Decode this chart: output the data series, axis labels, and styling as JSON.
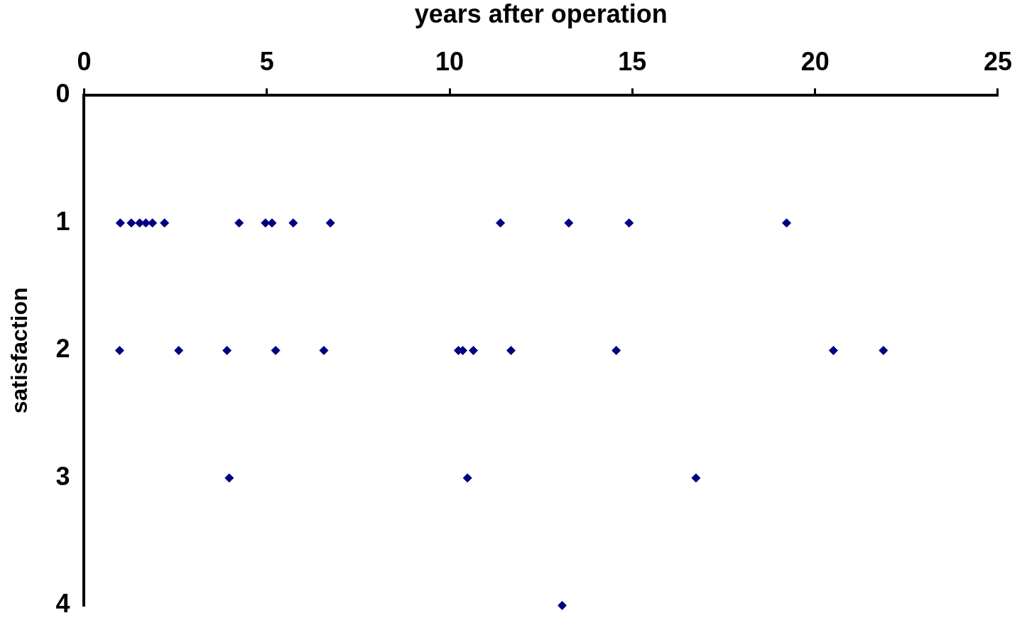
{
  "chart_data": {
    "type": "scatter",
    "xlabel": "years after operation",
    "ylabel": "satisfaction",
    "series": [
      {
        "color": "#000080",
        "x": [
          0.99,
          1.29,
          1.52,
          1.69,
          1.87,
          2.2,
          4.24,
          4.96,
          5.14,
          5.72,
          6.74,
          11.39,
          13.26,
          14.91,
          19.22,
          0.97,
          2.59,
          3.91,
          5.24,
          6.56,
          10.24,
          10.36,
          10.65,
          11.68,
          14.56,
          20.5,
          21.87,
          3.97,
          10.49,
          16.74,
          13.08
        ],
        "values": [
          1,
          1,
          1,
          1,
          1,
          1,
          1,
          1,
          1,
          1,
          1,
          1,
          1,
          1,
          1,
          2,
          2,
          2,
          2,
          2,
          2,
          2,
          2,
          2,
          2,
          2,
          2,
          3,
          3,
          3,
          4
        ]
      }
    ],
    "xlim": [
      0,
      25
    ],
    "xticks": [
      0,
      5,
      10,
      15,
      20,
      25
    ],
    "ylim": [
      4,
      0
    ],
    "yticks": [
      0,
      1,
      2,
      3,
      4
    ],
    "grid": false,
    "legend": false,
    "marker": "diamond"
  }
}
